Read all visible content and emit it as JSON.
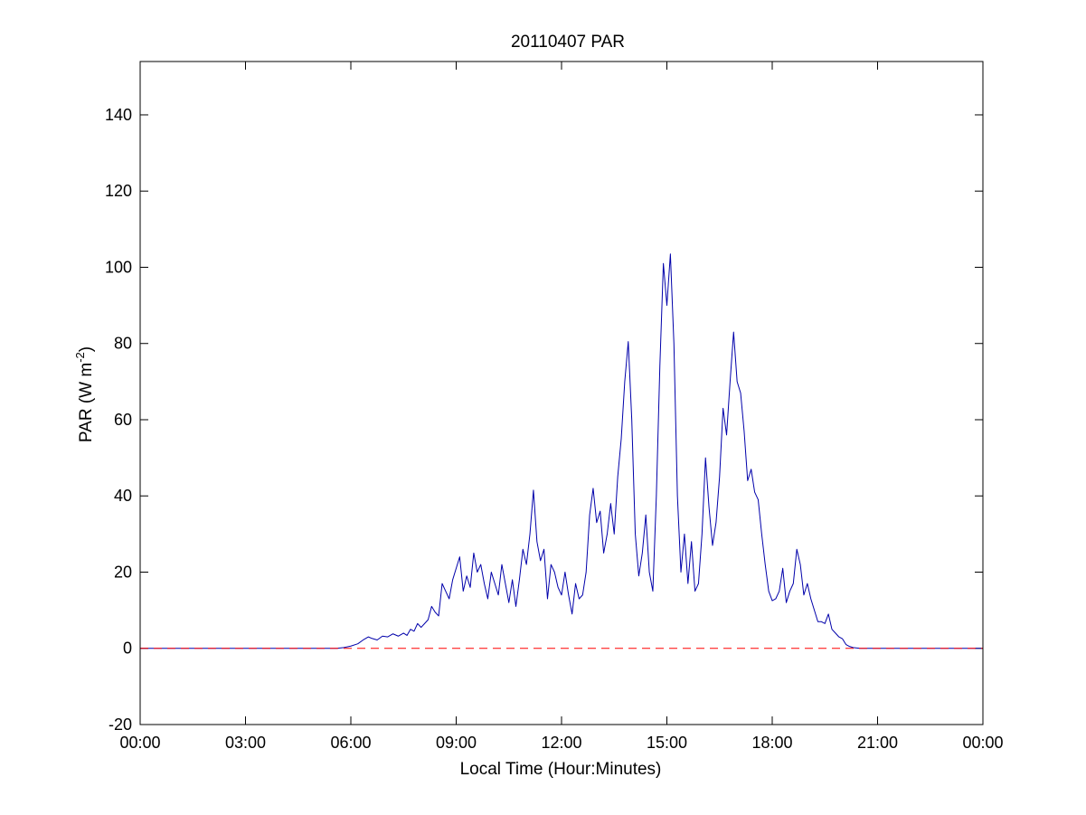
{
  "chart_data": {
    "type": "line",
    "title": "20110407 PAR",
    "xlabel": "Local Time (Hour:Minutes)",
    "ylabel": {
      "prefix": "PAR (W m",
      "superscript": "-2",
      "suffix": ")"
    },
    "x_unit": "hours",
    "xlim": [
      0,
      24
    ],
    "ylim": [
      -20,
      154
    ],
    "x_ticks": [
      {
        "value": 0,
        "label": "00:00"
      },
      {
        "value": 3,
        "label": "03:00"
      },
      {
        "value": 6,
        "label": "06:00"
      },
      {
        "value": 9,
        "label": "09:00"
      },
      {
        "value": 12,
        "label": "12:00"
      },
      {
        "value": 15,
        "label": "15:00"
      },
      {
        "value": 18,
        "label": "18:00"
      },
      {
        "value": 21,
        "label": "21:00"
      },
      {
        "value": 24,
        "label": "00:00"
      }
    ],
    "y_ticks": [
      {
        "value": -20,
        "label": "-20"
      },
      {
        "value": 0,
        "label": "0"
      },
      {
        "value": 20,
        "label": "20"
      },
      {
        "value": 40,
        "label": "40"
      },
      {
        "value": 60,
        "label": "60"
      },
      {
        "value": 80,
        "label": "80"
      },
      {
        "value": 100,
        "label": "100"
      },
      {
        "value": 120,
        "label": "120"
      },
      {
        "value": 140,
        "label": "140"
      }
    ],
    "grid": false,
    "reference_line": {
      "y": 0,
      "style": "dashed",
      "color": "#ff0000"
    },
    "series": [
      {
        "color": "#0000aa",
        "points": [
          [
            0,
            0
          ],
          [
            5.6,
            0
          ],
          [
            5.8,
            0.2
          ],
          [
            6.0,
            0.6
          ],
          [
            6.2,
            1.2
          ],
          [
            6.35,
            2.2
          ],
          [
            6.5,
            3.0
          ],
          [
            6.6,
            2.6
          ],
          [
            6.75,
            2.2
          ],
          [
            6.9,
            3.2
          ],
          [
            7.05,
            3.0
          ],
          [
            7.2,
            3.8
          ],
          [
            7.35,
            3.2
          ],
          [
            7.5,
            4.0
          ],
          [
            7.6,
            3.4
          ],
          [
            7.7,
            5.0
          ],
          [
            7.8,
            4.5
          ],
          [
            7.9,
            6.5
          ],
          [
            8.0,
            5.5
          ],
          [
            8.1,
            6.5
          ],
          [
            8.2,
            7.5
          ],
          [
            8.3,
            11.0
          ],
          [
            8.4,
            9.5
          ],
          [
            8.5,
            8.5
          ],
          [
            8.6,
            17.0
          ],
          [
            8.7,
            15.0
          ],
          [
            8.8,
            13.0
          ],
          [
            8.9,
            18.0
          ],
          [
            9.0,
            21.0
          ],
          [
            9.1,
            24.0
          ],
          [
            9.2,
            15.0
          ],
          [
            9.3,
            19.0
          ],
          [
            9.4,
            16.0
          ],
          [
            9.5,
            25.0
          ],
          [
            9.6,
            20.0
          ],
          [
            9.7,
            22.0
          ],
          [
            9.8,
            17.0
          ],
          [
            9.9,
            13.0
          ],
          [
            10.0,
            20.0
          ],
          [
            10.1,
            17.0
          ],
          [
            10.2,
            14.0
          ],
          [
            10.3,
            22.0
          ],
          [
            10.4,
            17.0
          ],
          [
            10.5,
            12.0
          ],
          [
            10.6,
            18.0
          ],
          [
            10.7,
            11.0
          ],
          [
            10.8,
            18.0
          ],
          [
            10.9,
            26.0
          ],
          [
            11.0,
            22.0
          ],
          [
            11.1,
            30.0
          ],
          [
            11.2,
            41.5
          ],
          [
            11.3,
            28.0
          ],
          [
            11.4,
            23.0
          ],
          [
            11.5,
            26.0
          ],
          [
            11.6,
            13.0
          ],
          [
            11.7,
            22.0
          ],
          [
            11.8,
            20.0
          ],
          [
            11.9,
            16.0
          ],
          [
            12.0,
            14.0
          ],
          [
            12.1,
            20.0
          ],
          [
            12.2,
            14.0
          ],
          [
            12.3,
            9.0
          ],
          [
            12.4,
            17.0
          ],
          [
            12.5,
            13.0
          ],
          [
            12.6,
            14.0
          ],
          [
            12.7,
            20.0
          ],
          [
            12.8,
            35.0
          ],
          [
            12.9,
            42.0
          ],
          [
            13.0,
            33.0
          ],
          [
            13.1,
            36.0
          ],
          [
            13.2,
            25.0
          ],
          [
            13.3,
            30.0
          ],
          [
            13.4,
            38.0
          ],
          [
            13.5,
            30.0
          ],
          [
            13.6,
            45.0
          ],
          [
            13.7,
            55.0
          ],
          [
            13.8,
            70.0
          ],
          [
            13.9,
            80.5
          ],
          [
            14.0,
            60.0
          ],
          [
            14.1,
            30.0
          ],
          [
            14.2,
            19.0
          ],
          [
            14.3,
            25.0
          ],
          [
            14.4,
            35.0
          ],
          [
            14.5,
            20.0
          ],
          [
            14.6,
            15.0
          ],
          [
            14.7,
            40.0
          ],
          [
            14.8,
            74.0
          ],
          [
            14.9,
            101.0
          ],
          [
            15.0,
            90.0
          ],
          [
            15.1,
            103.5
          ],
          [
            15.2,
            80.0
          ],
          [
            15.3,
            40.0
          ],
          [
            15.4,
            20.0
          ],
          [
            15.5,
            30.0
          ],
          [
            15.6,
            17.0
          ],
          [
            15.7,
            28.0
          ],
          [
            15.8,
            15.0
          ],
          [
            15.9,
            17.0
          ],
          [
            16.0,
            30.0
          ],
          [
            16.1,
            50.0
          ],
          [
            16.2,
            37.0
          ],
          [
            16.3,
            27.0
          ],
          [
            16.4,
            33.0
          ],
          [
            16.5,
            45.0
          ],
          [
            16.6,
            63.0
          ],
          [
            16.7,
            56.0
          ],
          [
            16.8,
            70.0
          ],
          [
            16.9,
            83.0
          ],
          [
            17.0,
            70.0
          ],
          [
            17.1,
            67.0
          ],
          [
            17.2,
            57.0
          ],
          [
            17.3,
            44.0
          ],
          [
            17.4,
            47.0
          ],
          [
            17.5,
            41.0
          ],
          [
            17.6,
            39.0
          ],
          [
            17.7,
            30.0
          ],
          [
            17.8,
            22.0
          ],
          [
            17.9,
            15.0
          ],
          [
            18.0,
            12.5
          ],
          [
            18.1,
            13.0
          ],
          [
            18.2,
            15.0
          ],
          [
            18.3,
            21.0
          ],
          [
            18.4,
            12.0
          ],
          [
            18.5,
            15.0
          ],
          [
            18.6,
            17.0
          ],
          [
            18.7,
            26.0
          ],
          [
            18.8,
            22.0
          ],
          [
            18.9,
            14.0
          ],
          [
            19.0,
            17.0
          ],
          [
            19.1,
            13.0
          ],
          [
            19.2,
            10.0
          ],
          [
            19.3,
            7.0
          ],
          [
            19.4,
            7.0
          ],
          [
            19.5,
            6.5
          ],
          [
            19.6,
            9.0
          ],
          [
            19.7,
            5.0
          ],
          [
            19.8,
            4.0
          ],
          [
            19.9,
            3.0
          ],
          [
            20.0,
            2.5
          ],
          [
            20.1,
            1.0
          ],
          [
            20.2,
            0.5
          ],
          [
            20.3,
            0.2
          ],
          [
            20.5,
            0
          ],
          [
            24,
            0
          ]
        ]
      }
    ]
  }
}
